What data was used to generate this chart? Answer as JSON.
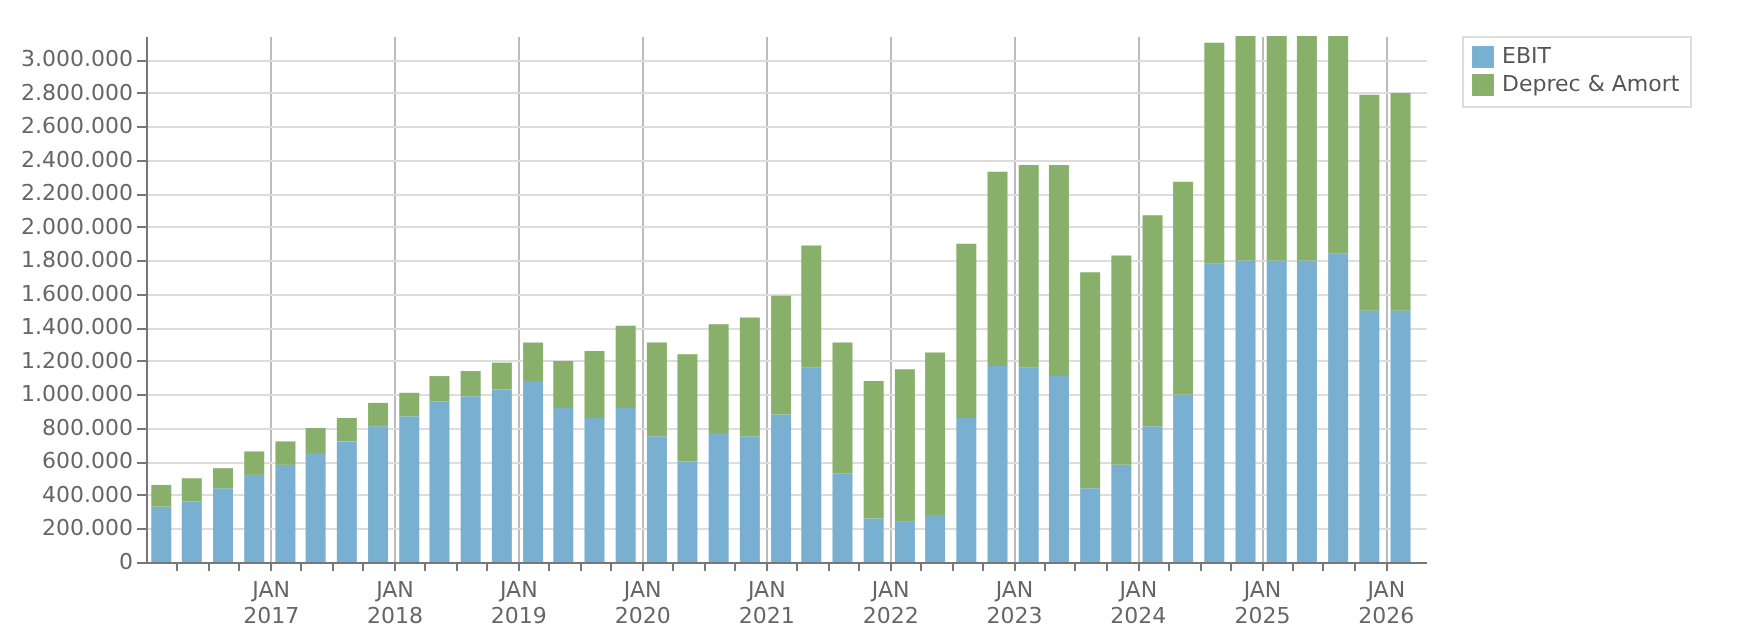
{
  "chart_data": {
    "type": "bar",
    "stacked": true,
    "x": [
      "2016-02-15",
      "2016-05-15",
      "2016-08-15",
      "2016-11-15",
      "2017-02-15",
      "2017-05-15",
      "2017-08-15",
      "2017-11-15",
      "2018-02-15",
      "2018-05-15",
      "2018-08-15",
      "2018-11-15",
      "2019-02-15",
      "2019-05-15",
      "2019-08-15",
      "2019-11-15",
      "2020-02-15",
      "2020-05-15",
      "2020-08-15",
      "2020-11-15",
      "2021-02-15",
      "2021-05-15",
      "2021-08-15",
      "2021-11-15",
      "2022-02-15",
      "2022-05-15",
      "2022-08-15",
      "2022-11-15",
      "2023-02-15",
      "2023-05-15",
      "2023-08-15",
      "2023-11-15",
      "2024-02-15",
      "2024-05-15",
      "2024-08-15",
      "2024-11-15",
      "2025-02-15",
      "2025-05-15",
      "2025-08-15",
      "2025-11-15",
      "2026-02-15"
    ],
    "series": [
      {
        "name": "EBIT",
        "color": "#79b0d2",
        "values": [
          330000,
          360000,
          440000,
          520000,
          580000,
          650000,
          720000,
          810000,
          870000,
          960000,
          990000,
          1030000,
          1080000,
          920000,
          860000,
          920000,
          750000,
          600000,
          770000,
          750000,
          880000,
          1160000,
          530000,
          260000,
          240000,
          280000,
          860000,
          1170000,
          1160000,
          1110000,
          440000,
          580000,
          810000,
          1000000,
          1780000,
          1800000,
          1800000,
          1800000,
          1840000,
          1500000,
          1500000
        ]
      },
      {
        "name": "Deprec & Amort",
        "color": "#89b06b",
        "values": [
          130000,
          140000,
          120000,
          140000,
          140000,
          150000,
          140000,
          140000,
          140000,
          150000,
          150000,
          160000,
          230000,
          280000,
          400000,
          490000,
          560000,
          640000,
          650000,
          710000,
          710000,
          730000,
          780000,
          820000,
          910000,
          970000,
          1040000,
          1160000,
          1210000,
          1260000,
          1290000,
          1250000,
          1260000,
          1270000,
          1320000,
          1340000,
          1340000,
          1340000,
          1300000,
          1290000,
          1300000
        ]
      }
    ],
    "xlim": [
      "2016-01-01",
      "2026-05-01"
    ],
    "xticks": [
      {
        "value": "2016-04-01",
        "label": null
      },
      {
        "value": "2016-07-01",
        "label": null
      },
      {
        "value": "2016-10-01",
        "label": null
      },
      {
        "value": "2017-01-01",
        "label": "JAN 2017"
      },
      {
        "value": "2017-04-01",
        "label": null
      },
      {
        "value": "2017-07-01",
        "label": null
      },
      {
        "value": "2017-10-01",
        "label": null
      },
      {
        "value": "2018-01-01",
        "label": "JAN 2018"
      },
      {
        "value": "2018-04-01",
        "label": null
      },
      {
        "value": "2018-07-01",
        "label": null
      },
      {
        "value": "2018-10-01",
        "label": null
      },
      {
        "value": "2019-01-01",
        "label": "JAN 2019"
      },
      {
        "value": "2019-04-01",
        "label": null
      },
      {
        "value": "2019-07-01",
        "label": null
      },
      {
        "value": "2019-10-01",
        "label": null
      },
      {
        "value": "2020-01-01",
        "label": "JAN 2020"
      },
      {
        "value": "2020-04-01",
        "label": null
      },
      {
        "value": "2020-07-01",
        "label": null
      },
      {
        "value": "2020-10-01",
        "label": null
      },
      {
        "value": "2021-01-01",
        "label": "JAN 2021"
      },
      {
        "value": "2021-04-01",
        "label": null
      },
      {
        "value": "2021-07-01",
        "label": null
      },
      {
        "value": "2021-10-01",
        "label": null
      },
      {
        "value": "2022-01-01",
        "label": "JAN 2022"
      },
      {
        "value": "2022-04-01",
        "label": null
      },
      {
        "value": "2022-07-01",
        "label": null
      },
      {
        "value": "2022-10-01",
        "label": null
      },
      {
        "value": "2023-01-01",
        "label": "JAN 2023"
      },
      {
        "value": "2023-04-01",
        "label": null
      },
      {
        "value": "2023-07-01",
        "label": null
      },
      {
        "value": "2023-10-01",
        "label": null
      },
      {
        "value": "2024-01-01",
        "label": "JAN 2024"
      },
      {
        "value": "2024-04-01",
        "label": null
      },
      {
        "value": "2024-07-01",
        "label": null
      },
      {
        "value": "2024-10-01",
        "label": null
      },
      {
        "value": "2025-01-01",
        "label": "JAN 2025"
      },
      {
        "value": "2025-04-01",
        "label": null
      },
      {
        "value": "2025-07-01",
        "label": null
      },
      {
        "value": "2025-10-01",
        "label": null
      },
      {
        "value": "2026-01-01",
        "label": "JAN 2026"
      }
    ],
    "ylim": [
      0,
      3140000
    ],
    "yticks": [
      0,
      {
        "value": 200000,
        "label": "200.000"
      },
      {
        "value": 400000,
        "label": "400.000"
      },
      {
        "value": 600000,
        "label": "600.000"
      },
      {
        "value": 800000,
        "label": "800.000"
      },
      {
        "value": 1000000,
        "label": "1.000.000"
      },
      {
        "value": 1200000,
        "label": "1.200.000"
      },
      {
        "value": 1400000,
        "label": "1.400.000"
      },
      {
        "value": 1600000,
        "label": "1.600.000"
      },
      {
        "value": 1800000,
        "label": "1.800.000"
      },
      {
        "value": 2000000,
        "label": "2.000.000"
      },
      {
        "value": 2200000,
        "label": "2.200.000"
      },
      {
        "value": 2400000,
        "label": "2.400.000"
      },
      {
        "value": 2600000,
        "label": "2.600.000"
      },
      {
        "value": 2800000,
        "label": "2.800.000"
      },
      {
        "value": 3000000,
        "label": "3.000.000"
      }
    ],
    "grid": true,
    "legend": "top right"
  }
}
